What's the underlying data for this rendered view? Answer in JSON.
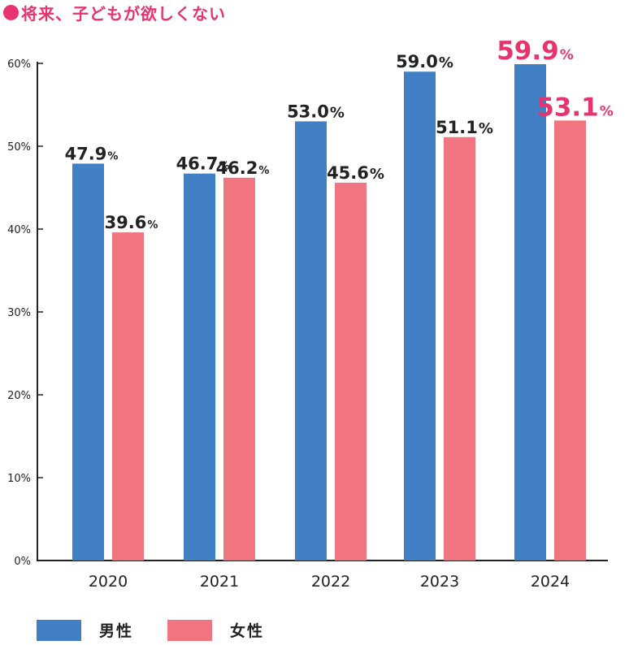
{
  "title": "将来、子どもが欲しくない",
  "colors": {
    "accent": "#e8336e",
    "male": "#4180c4",
    "female": "#f07580",
    "axis": "#222222",
    "text": "#222222"
  },
  "chart_data": {
    "type": "bar",
    "title": "将来、子どもが欲しくない",
    "categories": [
      "2020",
      "2021",
      "2022",
      "2023",
      "2024"
    ],
    "series": [
      {
        "name": "男性",
        "values": [
          47.9,
          46.7,
          53.0,
          59.0,
          59.9
        ]
      },
      {
        "name": "女性",
        "values": [
          39.6,
          46.2,
          45.6,
          51.1,
          53.1
        ]
      }
    ],
    "data_labels": [
      [
        "47.9",
        "46.7",
        "53.0",
        "59.0",
        "59.9"
      ],
      [
        "39.6",
        "46.2",
        "45.6",
        "51.1",
        "53.1"
      ]
    ],
    "label_suffix": "%",
    "percent_suffix_small": [
      [
        true,
        true,
        false,
        false,
        false
      ],
      [
        true,
        true,
        false,
        false,
        false
      ]
    ],
    "highlight": [
      [
        false,
        false,
        false,
        false,
        true
      ],
      [
        false,
        false,
        false,
        false,
        true
      ]
    ],
    "yticks": [
      0,
      10,
      20,
      30,
      40,
      50,
      60
    ],
    "ytick_labels": [
      "0%",
      "10%",
      "20%",
      "30%",
      "40%",
      "50%",
      "60%"
    ],
    "ylim": [
      0,
      60
    ],
    "xlabel": "",
    "ylabel": "",
    "grid": false,
    "legend_position": "bottom-left"
  },
  "legend": {
    "male": "男性",
    "female": "女性"
  }
}
